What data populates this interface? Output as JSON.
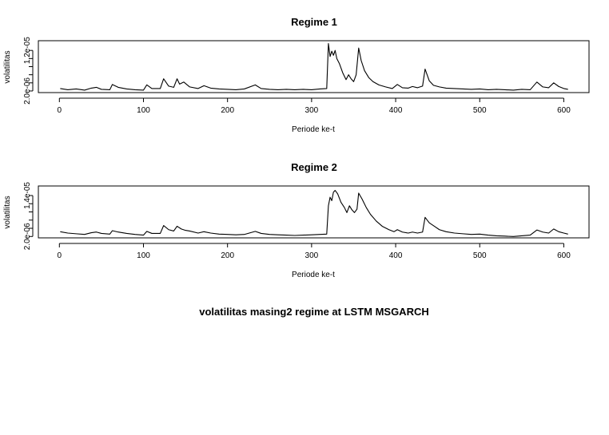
{
  "figure": {
    "main_title": "volatilitas masing2 regime at LSTM MSGARCH"
  },
  "chart_data": [
    {
      "type": "line",
      "title": "Regime 1",
      "xlabel": "Periode ke-t",
      "ylabel": "volatilitas",
      "x_ticks": [
        0,
        100,
        200,
        300,
        400,
        500,
        600
      ],
      "x_tick_labels": [
        "0",
        "100",
        "200",
        "300",
        "400",
        "500",
        "600"
      ],
      "y_ticks": [
        2e-06,
        1.2e-05
      ],
      "y_tick_labels": [
        "2.0e-06",
        "1.2e-05"
      ],
      "xlim": [
        -25,
        630
      ],
      "ylim": [
        1.6e-06,
        1.44e-05
      ],
      "grid": false,
      "series": [
        {
          "points": [
            [
              1,
              2.6e-06
            ],
            [
              10,
              2.3e-06
            ],
            [
              20,
              2.5e-06
            ],
            [
              30,
              2.2e-06
            ],
            [
              38,
              2.7e-06
            ],
            [
              44,
              2.9e-06
            ],
            [
              50,
              2.4e-06
            ],
            [
              60,
              2.3e-06
            ],
            [
              63,
              3.6e-06
            ],
            [
              70,
              2.9e-06
            ],
            [
              80,
              2.5e-06
            ],
            [
              90,
              2.3e-06
            ],
            [
              100,
              2.2e-06
            ],
            [
              104,
              3.5e-06
            ],
            [
              110,
              2.6e-06
            ],
            [
              120,
              2.6e-06
            ],
            [
              124,
              5e-06
            ],
            [
              130,
              3.2e-06
            ],
            [
              136,
              2.9e-06
            ],
            [
              140,
              5e-06
            ],
            [
              143,
              3.7e-06
            ],
            [
              148,
              4.2e-06
            ],
            [
              155,
              3e-06
            ],
            [
              165,
              2.6e-06
            ],
            [
              172,
              3.3e-06
            ],
            [
              180,
              2.7e-06
            ],
            [
              190,
              2.5e-06
            ],
            [
              200,
              2.4e-06
            ],
            [
              210,
              2.3e-06
            ],
            [
              220,
              2.5e-06
            ],
            [
              233,
              3.5e-06
            ],
            [
              240,
              2.6e-06
            ],
            [
              250,
              2.4e-06
            ],
            [
              260,
              2.3e-06
            ],
            [
              270,
              2.4e-06
            ],
            [
              280,
              2.3e-06
            ],
            [
              290,
              2.4e-06
            ],
            [
              300,
              2.3e-06
            ],
            [
              310,
              2.5e-06
            ],
            [
              318,
              2.6e-06
            ],
            [
              320,
              1.37e-05
            ],
            [
              322,
              1.05e-05
            ],
            [
              324,
              1.18e-05
            ],
            [
              326,
              1.08e-05
            ],
            [
              328,
              1.2e-05
            ],
            [
              330,
              1e-05
            ],
            [
              333,
              8.8e-06
            ],
            [
              337,
              6.5e-06
            ],
            [
              341,
              4.8e-06
            ],
            [
              344,
              6e-06
            ],
            [
              347,
              5e-06
            ],
            [
              350,
              4.3e-06
            ],
            [
              353,
              6e-06
            ],
            [
              356,
              1.26e-05
            ],
            [
              359,
              9.5e-06
            ],
            [
              363,
              7e-06
            ],
            [
              368,
              5.3e-06
            ],
            [
              373,
              4.3e-06
            ],
            [
              380,
              3.5e-06
            ],
            [
              388,
              3e-06
            ],
            [
              396,
              2.6e-06
            ],
            [
              402,
              3.6e-06
            ],
            [
              408,
              2.8e-06
            ],
            [
              415,
              2.7e-06
            ],
            [
              420,
              3.1e-06
            ],
            [
              426,
              2.8e-06
            ],
            [
              432,
              3.2e-06
            ],
            [
              435,
              7.4e-06
            ],
            [
              440,
              4.5e-06
            ],
            [
              445,
              3.4e-06
            ],
            [
              452,
              3e-06
            ],
            [
              460,
              2.7e-06
            ],
            [
              470,
              2.6e-06
            ],
            [
              480,
              2.5e-06
            ],
            [
              490,
              2.4e-06
            ],
            [
              500,
              2.5e-06
            ],
            [
              510,
              2.3e-06
            ],
            [
              520,
              2.4e-06
            ],
            [
              530,
              2.3e-06
            ],
            [
              540,
              2.2e-06
            ],
            [
              550,
              2.4e-06
            ],
            [
              560,
              2.3e-06
            ],
            [
              568,
              4.2e-06
            ],
            [
              575,
              3e-06
            ],
            [
              582,
              2.8e-06
            ],
            [
              588,
              4e-06
            ],
            [
              594,
              3.1e-06
            ],
            [
              600,
              2.6e-06
            ],
            [
              605,
              2.4e-06
            ]
          ]
        }
      ]
    },
    {
      "type": "line",
      "title": "Regime 2",
      "xlabel": "Periode ke-t",
      "ylabel": "volatilitas",
      "x_ticks": [
        0,
        100,
        200,
        300,
        400,
        500,
        600
      ],
      "x_tick_labels": [
        "0",
        "100",
        "200",
        "300",
        "400",
        "500",
        "600"
      ],
      "y_ticks": [
        2e-06,
        1.4e-05
      ],
      "y_tick_labels": [
        "2.0e-06",
        "1.4e-05"
      ],
      "xlim": [
        -25,
        630
      ],
      "ylim": [
        1.6e-06,
        1.68e-05
      ],
      "grid": false,
      "series": [
        {
          "points": [
            [
              1,
              3.4e-06
            ],
            [
              10,
              3e-06
            ],
            [
              20,
              2.8e-06
            ],
            [
              30,
              2.6e-06
            ],
            [
              38,
              3.1e-06
            ],
            [
              44,
              3.3e-06
            ],
            [
              50,
              2.9e-06
            ],
            [
              60,
              2.7e-06
            ],
            [
              63,
              3.7e-06
            ],
            [
              70,
              3.3e-06
            ],
            [
              80,
              2.9e-06
            ],
            [
              90,
              2.6e-06
            ],
            [
              100,
              2.4e-06
            ],
            [
              104,
              3.5e-06
            ],
            [
              110,
              2.9e-06
            ],
            [
              120,
              2.9e-06
            ],
            [
              124,
              5.2e-06
            ],
            [
              130,
              4e-06
            ],
            [
              136,
              3.6e-06
            ],
            [
              140,
              5e-06
            ],
            [
              145,
              4.2e-06
            ],
            [
              150,
              3.8e-06
            ],
            [
              155,
              3.6e-06
            ],
            [
              165,
              3e-06
            ],
            [
              172,
              3.4e-06
            ],
            [
              180,
              3e-06
            ],
            [
              190,
              2.7e-06
            ],
            [
              200,
              2.6e-06
            ],
            [
              210,
              2.5e-06
            ],
            [
              220,
              2.6e-06
            ],
            [
              233,
              3.5e-06
            ],
            [
              240,
              2.9e-06
            ],
            [
              250,
              2.6e-06
            ],
            [
              260,
              2.5e-06
            ],
            [
              270,
              2.4e-06
            ],
            [
              280,
              2.3e-06
            ],
            [
              290,
              2.4e-06
            ],
            [
              300,
              2.5e-06
            ],
            [
              310,
              2.6e-06
            ],
            [
              318,
              2.7e-06
            ],
            [
              320,
              1.1e-05
            ],
            [
              322,
              1.35e-05
            ],
            [
              324,
              1.25e-05
            ],
            [
              326,
              1.5e-05
            ],
            [
              328,
              1.55e-05
            ],
            [
              331,
              1.45e-05
            ],
            [
              335,
              1.2e-05
            ],
            [
              339,
              1.05e-05
            ],
            [
              342,
              9e-06
            ],
            [
              345,
              1.1e-05
            ],
            [
              348,
              9.8e-06
            ],
            [
              351,
              9e-06
            ],
            [
              354,
              1e-05
            ],
            [
              356,
              1.47e-05
            ],
            [
              360,
              1.3e-05
            ],
            [
              365,
              1.05e-05
            ],
            [
              370,
              8.5e-06
            ],
            [
              377,
              6.5e-06
            ],
            [
              384,
              5e-06
            ],
            [
              392,
              4e-06
            ],
            [
              398,
              3.4e-06
            ],
            [
              402,
              4e-06
            ],
            [
              408,
              3.3e-06
            ],
            [
              415,
              3e-06
            ],
            [
              420,
              3.3e-06
            ],
            [
              426,
              3e-06
            ],
            [
              432,
              3.3e-06
            ],
            [
              435,
              7.6e-06
            ],
            [
              440,
              6e-06
            ],
            [
              446,
              5e-06
            ],
            [
              452,
              4e-06
            ],
            [
              460,
              3.4e-06
            ],
            [
              470,
              3e-06
            ],
            [
              480,
              2.8e-06
            ],
            [
              490,
              2.6e-06
            ],
            [
              500,
              2.7e-06
            ],
            [
              510,
              2.4e-06
            ],
            [
              520,
              2.2e-06
            ],
            [
              530,
              2.1e-06
            ],
            [
              540,
              2e-06
            ],
            [
              550,
              2.2e-06
            ],
            [
              560,
              2.4e-06
            ],
            [
              568,
              3.9e-06
            ],
            [
              575,
              3.3e-06
            ],
            [
              582,
              3e-06
            ],
            [
              588,
              4.2e-06
            ],
            [
              594,
              3.4e-06
            ],
            [
              600,
              3e-06
            ],
            [
              605,
              2.7e-06
            ]
          ]
        }
      ]
    }
  ]
}
